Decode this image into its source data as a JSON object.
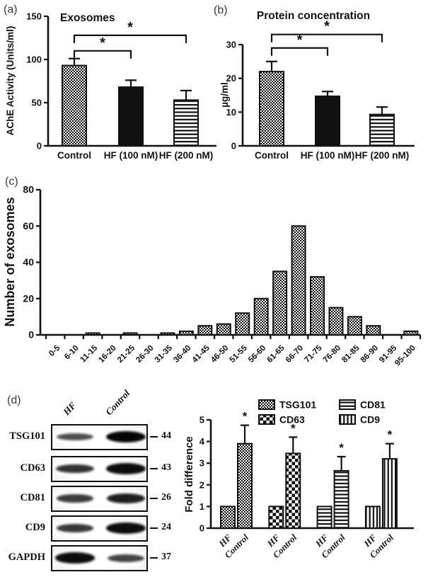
{
  "panel_labels": {
    "a": "(a)",
    "b": "(b)",
    "c": "(c)",
    "d": "(d)"
  },
  "chart_data": [
    {
      "id": "exosomes_ache",
      "type": "bar",
      "title": "Exosomes",
      "xlabel": "",
      "ylabel": "AChE Activity (Units/ml)",
      "ylim": [
        0,
        150
      ],
      "yticks": [
        0,
        50,
        100,
        150
      ],
      "categories": [
        "Control",
        "HF (100 nM)",
        "HF (200 nM)"
      ],
      "values": [
        93,
        68,
        53
      ],
      "errors": [
        8,
        8,
        11
      ],
      "patterns": [
        "dots",
        "solid",
        "hlines"
      ],
      "significance": [
        {
          "from": 0,
          "to": 1,
          "y": 110,
          "label": "*"
        },
        {
          "from": 0,
          "to": 2,
          "y": 128,
          "label": "*"
        }
      ],
      "legend_position": "none",
      "grid": false
    },
    {
      "id": "protein_concentration",
      "type": "bar",
      "title": "Protein concentration",
      "xlabel": "",
      "ylabel": "µg/ml",
      "ylim": [
        0,
        30
      ],
      "yticks": [
        0,
        10,
        20,
        30
      ],
      "categories": [
        "Control",
        "HF (100 nM)",
        "HF (200 nM)"
      ],
      "values": [
        22,
        14.7,
        9.3
      ],
      "errors": [
        3,
        1.4,
        2.2
      ],
      "patterns": [
        "dots",
        "solid",
        "hlines"
      ],
      "significance": [
        {
          "from": 0,
          "to": 1,
          "y": 29,
          "label": "*"
        },
        {
          "from": 0,
          "to": 2,
          "y": 33,
          "label": "*"
        }
      ],
      "legend_position": "none",
      "grid": false
    },
    {
      "id": "exosome_size_distribution",
      "type": "bar",
      "title": "",
      "xlabel": "",
      "ylabel": "Number of exosomes",
      "ylim": [
        0,
        80
      ],
      "yticks": [
        0,
        20,
        40,
        60,
        80
      ],
      "categories": [
        "0-5",
        "6-10",
        "11-15",
        "16-20",
        "21-25",
        "26-30",
        "31-35",
        "36-40",
        "41-45",
        "46-50",
        "51-55",
        "56-60",
        "61-65",
        "66-70",
        "71-75",
        "76-80",
        "81-85",
        "86-90",
        "91-95",
        "95-100"
      ],
      "values": [
        0,
        0,
        1,
        0,
        1,
        0,
        1,
        2,
        5,
        6,
        12,
        20,
        35,
        60,
        32,
        15,
        10,
        5,
        0,
        2
      ],
      "pattern": "dots",
      "legend_position": "none",
      "grid": false
    },
    {
      "id": "fold_difference",
      "type": "bar",
      "title": "",
      "xlabel": "",
      "ylabel": "Fold difference",
      "ylim": [
        0,
        5
      ],
      "yticks": [
        0,
        1,
        2,
        3,
        4,
        5
      ],
      "categories": [
        "HF",
        "Control"
      ],
      "series": [
        {
          "name": "TSG101",
          "pattern": "dots",
          "values": [
            1,
            3.9
          ],
          "errors": [
            0,
            0.85
          ],
          "significance": [
            null,
            "*"
          ]
        },
        {
          "name": "CD63",
          "pattern": "checker",
          "values": [
            1,
            3.45
          ],
          "errors": [
            0,
            0.75
          ],
          "significance": [
            null,
            "*"
          ]
        },
        {
          "name": "CD81",
          "pattern": "hlines",
          "values": [
            1,
            2.65
          ],
          "errors": [
            0,
            0.65
          ],
          "significance": [
            null,
            "*"
          ]
        },
        {
          "name": "CD9",
          "pattern": "vlines",
          "values": [
            1,
            3.2
          ],
          "errors": [
            0,
            0.7
          ],
          "significance": [
            null,
            "*"
          ]
        }
      ],
      "legend": [
        {
          "label": "TSG101",
          "pattern": "dots"
        },
        {
          "label": "CD63",
          "pattern": "checker"
        },
        {
          "label": "CD81",
          "pattern": "hlines"
        },
        {
          "label": "CD9",
          "pattern": "vlines"
        }
      ],
      "legend_position": "top",
      "grid": false
    }
  ],
  "western_blot": {
    "lane_labels": [
      "HF",
      "Control"
    ],
    "rows": [
      {
        "protein": "TSG101",
        "mw": "44",
        "band_intensity": {
          "hf": 0.4,
          "control": 1.0
        }
      },
      {
        "protein": "CD63",
        "mw": "43",
        "band_intensity": {
          "hf": 0.65,
          "control": 0.95
        }
      },
      {
        "protein": "CD81",
        "mw": "26",
        "band_intensity": {
          "hf": 0.55,
          "control": 0.8
        }
      },
      {
        "protein": "CD9",
        "mw": "24",
        "band_intensity": {
          "hf": 0.6,
          "control": 0.95
        }
      },
      {
        "protein": "GAPDH",
        "mw": "37",
        "band_intensity": {
          "hf": 0.95,
          "control": 0.5
        }
      }
    ]
  },
  "colors": {
    "ink": "#111111",
    "background": "#ffffff"
  }
}
